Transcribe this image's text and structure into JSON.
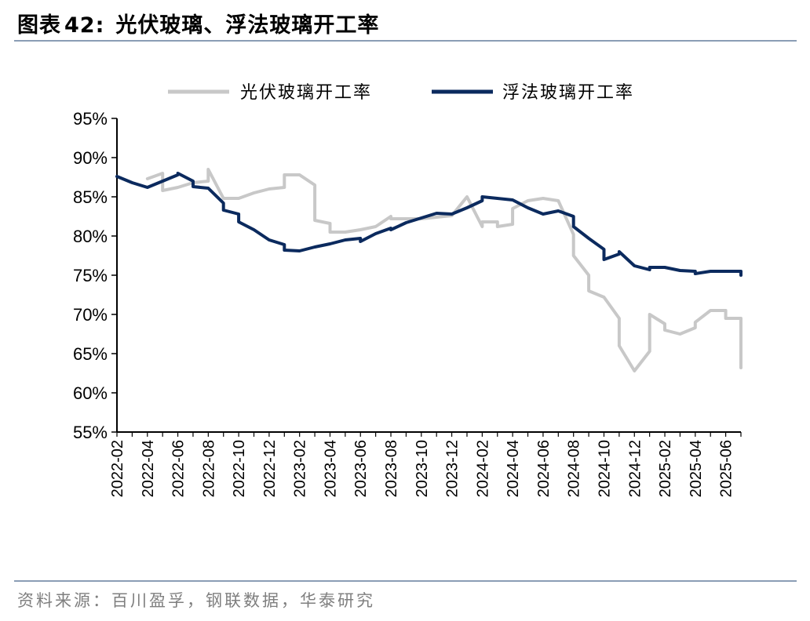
{
  "header": {
    "title_prefix": "图表",
    "title_number": "42:",
    "title_text": "光伏玻璃、浮法玻璃开工率"
  },
  "footer": {
    "source": "资料来源：百川盈孚，钢联数据，华泰研究"
  },
  "chart_data": {
    "type": "line",
    "title": "",
    "xlabel": "",
    "ylabel": "",
    "ylim": [
      0.55,
      0.95
    ],
    "y_ticks": [
      "55%",
      "60%",
      "65%",
      "70%",
      "75%",
      "80%",
      "85%",
      "90%",
      "95%"
    ],
    "x_tick_labels": [
      "2022-02",
      "2022-04",
      "2022-06",
      "2022-08",
      "2022-10",
      "2022-12",
      "2023-02",
      "2023-04",
      "2023-06",
      "2023-08",
      "2023-10",
      "2023-12",
      "2024-02",
      "2024-04",
      "2024-06",
      "2024-08",
      "2024-10",
      "2024-12",
      "2025-02",
      "2025-04",
      "2025-06"
    ],
    "xlim": [
      "2022-02",
      "2025-07"
    ],
    "grid": false,
    "legend_position": "top",
    "series": [
      {
        "name": "光伏玻璃开工率",
        "color": "#c8c8c8",
        "points": [
          [
            "2022-04",
            0.873
          ],
          [
            "2022-05",
            0.88
          ],
          [
            "2022-05",
            0.858
          ],
          [
            "2022-06",
            0.862
          ],
          [
            "2022-07",
            0.868
          ],
          [
            "2022-08",
            0.87
          ],
          [
            "2022-08",
            0.885
          ],
          [
            "2022-09",
            0.848
          ],
          [
            "2022-10",
            0.848
          ],
          [
            "2022-11",
            0.855
          ],
          [
            "2022-12",
            0.86
          ],
          [
            "2023-01",
            0.862
          ],
          [
            "2023-01",
            0.878
          ],
          [
            "2023-02",
            0.878
          ],
          [
            "2023-03",
            0.865
          ],
          [
            "2023-03",
            0.82
          ],
          [
            "2023-04",
            0.816
          ],
          [
            "2023-04",
            0.805
          ],
          [
            "2023-05",
            0.805
          ],
          [
            "2023-06",
            0.808
          ],
          [
            "2023-07",
            0.812
          ],
          [
            "2023-08",
            0.825
          ],
          [
            "2023-08",
            0.822
          ],
          [
            "2023-10",
            0.822
          ],
          [
            "2023-12",
            0.826
          ],
          [
            "2024-01",
            0.85
          ],
          [
            "2024-02",
            0.812
          ],
          [
            "2024-02",
            0.818
          ],
          [
            "2024-03",
            0.818
          ],
          [
            "2024-03",
            0.812
          ],
          [
            "2024-04",
            0.815
          ],
          [
            "2024-04",
            0.835
          ],
          [
            "2024-05",
            0.845
          ],
          [
            "2024-06",
            0.848
          ],
          [
            "2024-07",
            0.845
          ],
          [
            "2024-08",
            0.802
          ],
          [
            "2024-08",
            0.775
          ],
          [
            "2024-09",
            0.75
          ],
          [
            "2024-09",
            0.73
          ],
          [
            "2024-10",
            0.722
          ],
          [
            "2024-11",
            0.695
          ],
          [
            "2024-11",
            0.66
          ],
          [
            "2024-12",
            0.628
          ],
          [
            "2024-12",
            0.628
          ],
          [
            "2025-01",
            0.653
          ],
          [
            "2025-01",
            0.7
          ],
          [
            "2025-02",
            0.688
          ],
          [
            "2025-02",
            0.68
          ],
          [
            "2025-03",
            0.675
          ],
          [
            "2025-04",
            0.683
          ],
          [
            "2025-04",
            0.69
          ],
          [
            "2025-05",
            0.705
          ],
          [
            "2025-06",
            0.705
          ],
          [
            "2025-06",
            0.695
          ],
          [
            "2025-07",
            0.695
          ],
          [
            "2025-07",
            0.632
          ]
        ]
      },
      {
        "name": "浮法玻璃开工率",
        "color": "#0b2a5e",
        "points": [
          [
            "2022-02",
            0.876
          ],
          [
            "2022-03",
            0.868
          ],
          [
            "2022-04",
            0.862
          ],
          [
            "2022-04",
            0.862
          ],
          [
            "2022-05",
            0.87
          ],
          [
            "2022-06",
            0.878
          ],
          [
            "2022-06",
            0.88
          ],
          [
            "2022-07",
            0.87
          ],
          [
            "2022-07",
            0.863
          ],
          [
            "2022-08",
            0.861
          ],
          [
            "2022-09",
            0.842
          ],
          [
            "2022-09",
            0.833
          ],
          [
            "2022-10",
            0.828
          ],
          [
            "2022-10",
            0.818
          ],
          [
            "2022-11",
            0.808
          ],
          [
            "2022-12",
            0.795
          ],
          [
            "2023-01",
            0.789
          ],
          [
            "2023-01",
            0.782
          ],
          [
            "2023-02",
            0.781
          ],
          [
            "2023-03",
            0.786
          ],
          [
            "2023-04",
            0.79
          ],
          [
            "2023-05",
            0.795
          ],
          [
            "2023-06",
            0.797
          ],
          [
            "2023-06",
            0.793
          ],
          [
            "2023-07",
            0.803
          ],
          [
            "2023-08",
            0.81
          ],
          [
            "2023-08",
            0.808
          ],
          [
            "2023-09",
            0.817
          ],
          [
            "2023-10",
            0.823
          ],
          [
            "2023-11",
            0.829
          ],
          [
            "2023-12",
            0.828
          ],
          [
            "2024-01",
            0.836
          ],
          [
            "2024-02",
            0.845
          ],
          [
            "2024-02",
            0.85
          ],
          [
            "2024-03",
            0.848
          ],
          [
            "2024-04",
            0.846
          ],
          [
            "2024-05",
            0.836
          ],
          [
            "2024-06",
            0.828
          ],
          [
            "2024-07",
            0.832
          ],
          [
            "2024-08",
            0.825
          ],
          [
            "2024-08",
            0.812
          ],
          [
            "2024-09",
            0.797
          ],
          [
            "2024-10",
            0.783
          ],
          [
            "2024-10",
            0.77
          ],
          [
            "2024-11",
            0.777
          ],
          [
            "2024-11",
            0.78
          ],
          [
            "2024-12",
            0.762
          ],
          [
            "2025-01",
            0.757
          ],
          [
            "2025-01",
            0.76
          ],
          [
            "2025-02",
            0.76
          ],
          [
            "2025-03",
            0.756
          ],
          [
            "2025-04",
            0.755
          ],
          [
            "2025-04",
            0.752
          ],
          [
            "2025-05",
            0.755
          ],
          [
            "2025-06",
            0.755
          ],
          [
            "2025-07",
            0.755
          ],
          [
            "2025-07",
            0.75
          ]
        ]
      }
    ]
  }
}
